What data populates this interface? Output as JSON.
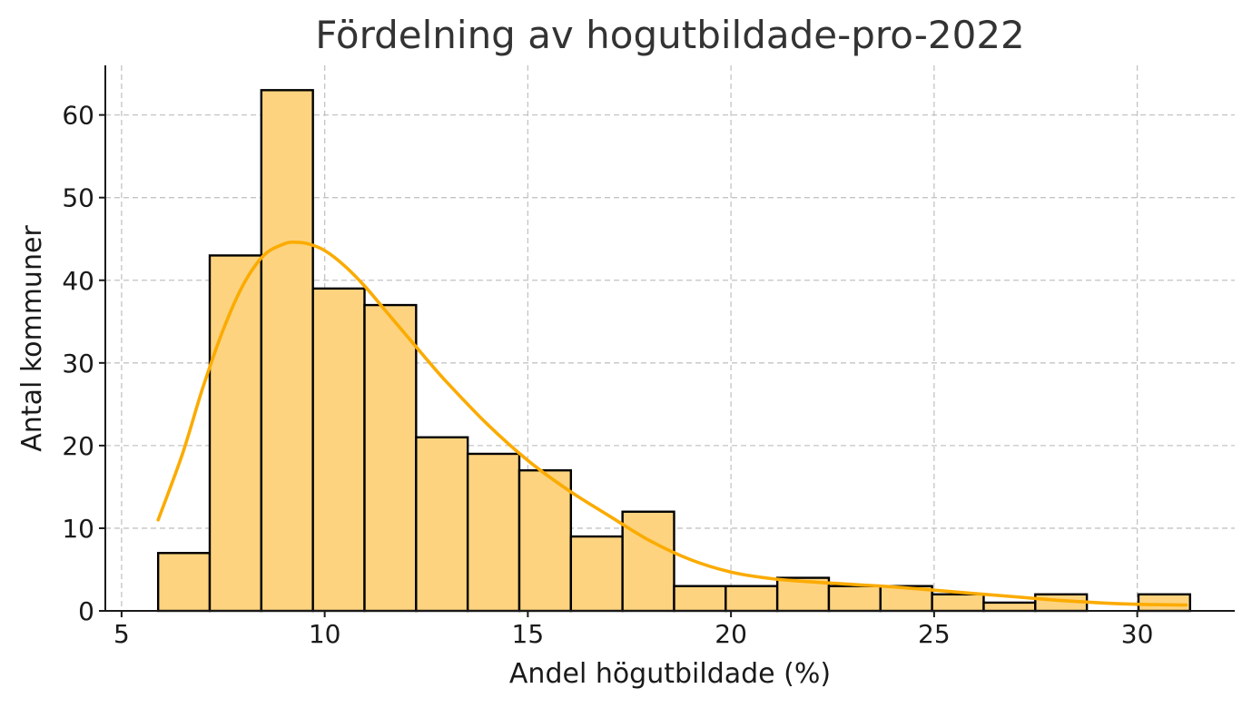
{
  "chart_data": {
    "type": "bar",
    "subtype": "histogram-with-kde",
    "title": "Fördelning av hogutbildade-pro-2022",
    "xlabel": "Andel högutbildade (%)",
    "ylabel": "Antal kommuner",
    "xlim": [
      4.6,
      32.4
    ],
    "ylim": [
      0,
      66
    ],
    "xticks": [
      5,
      10,
      15,
      20,
      25,
      30
    ],
    "yticks": [
      0,
      10,
      20,
      30,
      40,
      50,
      60
    ],
    "grid": true,
    "bar_color": "#fdd37f",
    "bar_edge_color": "#000000",
    "kde_color": "#fbab00",
    "bins": [
      {
        "x0": 5.9,
        "x1": 7.17,
        "count": 7
      },
      {
        "x0": 7.17,
        "x1": 8.44,
        "count": 43
      },
      {
        "x0": 8.44,
        "x1": 9.71,
        "count": 63
      },
      {
        "x0": 9.71,
        "x1": 10.98,
        "count": 39
      },
      {
        "x0": 10.98,
        "x1": 12.25,
        "count": 37
      },
      {
        "x0": 12.25,
        "x1": 13.52,
        "count": 21
      },
      {
        "x0": 13.52,
        "x1": 14.79,
        "count": 19
      },
      {
        "x0": 14.79,
        "x1": 16.06,
        "count": 17
      },
      {
        "x0": 16.06,
        "x1": 17.33,
        "count": 9
      },
      {
        "x0": 17.33,
        "x1": 18.6,
        "count": 12
      },
      {
        "x0": 18.6,
        "x1": 19.87,
        "count": 3
      },
      {
        "x0": 19.87,
        "x1": 21.14,
        "count": 3
      },
      {
        "x0": 21.14,
        "x1": 22.41,
        "count": 4
      },
      {
        "x0": 22.41,
        "x1": 23.68,
        "count": 3
      },
      {
        "x0": 23.68,
        "x1": 24.95,
        "count": 3
      },
      {
        "x0": 24.95,
        "x1": 26.22,
        "count": 2
      },
      {
        "x0": 26.22,
        "x1": 27.49,
        "count": 1
      },
      {
        "x0": 27.49,
        "x1": 28.76,
        "count": 2
      },
      {
        "x0": 28.76,
        "x1": 30.03,
        "count": 0
      },
      {
        "x0": 30.03,
        "x1": 31.3,
        "count": 2
      }
    ],
    "kde": {
      "x": [
        5.9,
        6.5,
        7.0,
        7.5,
        8.0,
        8.5,
        9.0,
        9.3,
        9.6,
        10.0,
        10.5,
        11.0,
        11.5,
        12.0,
        12.5,
        13.0,
        14.0,
        15.0,
        16.0,
        17.0,
        18.0,
        19.0,
        20.0,
        21.0,
        22.0,
        23.0,
        24.0,
        25.0,
        26.0,
        27.0,
        28.0,
        29.0,
        30.0,
        31.2
      ],
      "y": [
        11,
        19,
        27,
        34,
        39.5,
        43,
        44.4,
        44.6,
        44.4,
        43.6,
        41.7,
        39.2,
        36.3,
        33.4,
        30.5,
        27.7,
        22.6,
        18.2,
        14.6,
        11.5,
        8.5,
        6.2,
        4.7,
        3.9,
        3.5,
        3.2,
        2.9,
        2.5,
        2.1,
        1.7,
        1.3,
        1.0,
        0.8,
        0.7
      ]
    }
  }
}
